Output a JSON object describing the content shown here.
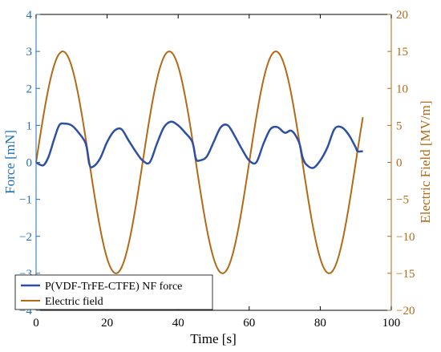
{
  "chart_data": {
    "type": "line",
    "xlabel": "Time [s]",
    "ylabel_left": "Force [mN]",
    "ylabel_right": "Electric Field [MV/m]",
    "xlim": [
      0,
      100
    ],
    "ylim_left": [
      -4,
      4
    ],
    "ylim_right": [
      -20,
      20
    ],
    "x_ticks": [
      0,
      20,
      40,
      60,
      80,
      100
    ],
    "y_left_ticks": [
      -4,
      -3,
      -2,
      -1,
      0,
      1,
      2,
      3,
      4
    ],
    "y_right_ticks": [
      -20,
      -15,
      -10,
      -5,
      0,
      5,
      10,
      15,
      20
    ],
    "x_tick_labels": [
      "0",
      "20",
      "40",
      "60",
      "80",
      "100"
    ],
    "y_left_tick_labels": [
      "−4",
      "−3",
      "−2",
      "−1",
      "0",
      "1",
      "2",
      "3",
      "4"
    ],
    "y_right_tick_labels": [
      "−20",
      "−15",
      "−10",
      "−5",
      "0",
      "5",
      "10",
      "15",
      "20"
    ],
    "grid": false,
    "legend_position": "bottom-left",
    "series": [
      {
        "name": "P(VDF-TrFE-CTFE) NF force",
        "axis": "left",
        "color": "#2e4fa3",
        "x": [
          0,
          2,
          3.5,
          5,
          6.5,
          8,
          10,
          12,
          14,
          15,
          16,
          18,
          20,
          22,
          24,
          26,
          28,
          30,
          32,
          34,
          36,
          38,
          40,
          42,
          44,
          45,
          46,
          48,
          50,
          52,
          54,
          56,
          58,
          60,
          62,
          64,
          66,
          68,
          70,
          72,
          74,
          75,
          76,
          78,
          80,
          82,
          84,
          86,
          88,
          90,
          90.5,
          92
        ],
        "y": [
          0,
          -0.08,
          0.15,
          0.6,
          1.0,
          1.05,
          1.0,
          0.8,
          0.5,
          -0.05,
          -0.12,
          0.1,
          0.55,
          0.85,
          0.9,
          0.6,
          0.3,
          0.05,
          0.0,
          0.5,
          0.95,
          1.1,
          1.0,
          0.8,
          0.55,
          0.1,
          0.05,
          0.15,
          0.55,
          0.95,
          1.0,
          0.7,
          0.35,
          0.05,
          0.0,
          0.5,
          0.9,
          0.95,
          0.8,
          0.85,
          0.55,
          0.15,
          -0.05,
          -0.15,
          0.05,
          0.4,
          0.9,
          0.95,
          0.75,
          0.4,
          0.3,
          0.3
        ]
      },
      {
        "name": "Electric field",
        "axis": "right",
        "color": "#b26a17",
        "function": "sine",
        "amplitude": 15,
        "period": 30,
        "x_range": [
          0,
          92
        ]
      }
    ]
  }
}
